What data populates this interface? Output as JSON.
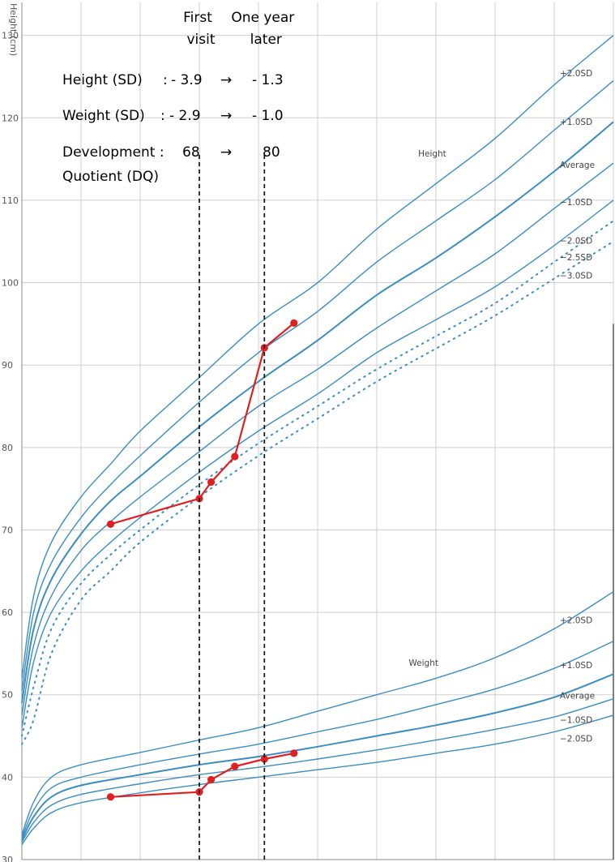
{
  "chart_data": {
    "type": "line",
    "ylabel": "Height (cm)",
    "ylim": [
      30,
      134
    ],
    "xlim": [
      0,
      5
    ],
    "y_ticks": [
      30,
      40,
      50,
      60,
      70,
      80,
      90,
      100,
      110,
      120,
      130
    ],
    "height_group_label": "Height",
    "weight_group_label": "Weight",
    "height_curves": [
      {
        "name": "+2.0SD",
        "style": "solid",
        "x": [
          0,
          0.1,
          0.25,
          0.5,
          0.75,
          1.0,
          1.5,
          2.0,
          2.5,
          3.0,
          3.5,
          4.0,
          4.5,
          5.0
        ],
        "y": [
          52,
          62,
          68.5,
          74,
          78,
          82,
          88.5,
          95,
          100,
          106.5,
          112,
          117.5,
          124,
          130
        ]
      },
      {
        "name": "+1.0SD",
        "style": "solid",
        "x": [
          0,
          0.1,
          0.25,
          0.5,
          0.75,
          1.0,
          1.5,
          2.0,
          2.5,
          3.0,
          3.5,
          4.0,
          4.5,
          5.0
        ],
        "y": [
          50.5,
          60,
          66,
          71.5,
          75.5,
          79,
          85.5,
          91.5,
          96.5,
          102.5,
          107.5,
          112.5,
          118.5,
          124.5
        ]
      },
      {
        "name": "Average",
        "style": "solid",
        "x": [
          0,
          0.1,
          0.25,
          0.5,
          0.75,
          1.0,
          1.5,
          2.0,
          2.5,
          3.0,
          3.5,
          4.0,
          4.5,
          5.0
        ],
        "y": [
          49,
          58,
          64,
          69.5,
          73.5,
          76.5,
          82.5,
          88,
          93,
          98.5,
          103,
          108,
          113.5,
          119.5
        ]
      },
      {
        "name": "−1.0SD",
        "style": "solid",
        "x": [
          0,
          0.1,
          0.25,
          0.5,
          0.75,
          1.0,
          1.5,
          2.0,
          2.5,
          3.0,
          3.5,
          4.0,
          4.5,
          5.0
        ],
        "y": [
          47.5,
          56,
          62,
          67.5,
          71,
          74,
          79.5,
          85,
          89.5,
          94.5,
          99,
          103.5,
          109,
          114.5
        ]
      },
      {
        "name": "−2.0SD",
        "style": "solid",
        "x": [
          0,
          0.1,
          0.25,
          0.5,
          0.75,
          1.0,
          1.5,
          2.0,
          2.5,
          3.0,
          3.5,
          4.0,
          4.5,
          5.0
        ],
        "y": [
          46,
          54,
          60,
          65,
          68.5,
          71.5,
          77,
          82,
          86.5,
          91.5,
          95.5,
          99.5,
          104.5,
          110
        ]
      },
      {
        "name": "−2.5SD",
        "style": "dotted",
        "x": [
          0,
          0.1,
          0.25,
          0.5,
          0.75,
          1.0,
          1.5,
          2.0,
          2.5,
          3.0,
          3.5,
          4.0,
          4.5,
          5.0
        ],
        "y": [
          45,
          51,
          58,
          63.5,
          67,
          70,
          75.5,
          80.5,
          85,
          89.5,
          93.5,
          97.5,
          102.5,
          107.5
        ]
      },
      {
        "name": "−3.0SD",
        "style": "dotted",
        "x": [
          0,
          0.1,
          0.25,
          0.5,
          0.75,
          1.0,
          1.5,
          2.0,
          2.5,
          3.0,
          3.5,
          4.0,
          4.5,
          5.0
        ],
        "y": [
          44,
          47,
          55,
          61.5,
          65,
          68.5,
          74,
          79,
          83.5,
          88,
          92,
          96,
          100.5,
          105
        ]
      }
    ],
    "weight_curves": [
      {
        "name": "+2.0SD",
        "style": "solid",
        "x": [
          0,
          0.1,
          0.25,
          0.5,
          1.0,
          1.5,
          2.0,
          2.5,
          3.0,
          3.5,
          4.0,
          4.5,
          5.0
        ],
        "y": [
          33,
          37,
          40,
          41.5,
          43,
          44.5,
          46,
          48,
          50,
          52,
          54.5,
          58,
          62.5
        ]
      },
      {
        "name": "+1.0SD",
        "style": "solid",
        "x": [
          0,
          0.1,
          0.25,
          0.5,
          1.0,
          1.5,
          2.0,
          2.5,
          3.0,
          3.5,
          4.0,
          4.5,
          5.0
        ],
        "y": [
          32.7,
          36,
          38.7,
          40,
          41.5,
          42.8,
          44,
          45.5,
          47,
          48.8,
          50.7,
          53.2,
          56.5
        ]
      },
      {
        "name": "Average",
        "style": "solid",
        "x": [
          0,
          0.1,
          0.25,
          0.5,
          1.0,
          1.5,
          2.0,
          2.5,
          3.0,
          3.5,
          4.0,
          4.5,
          5.0
        ],
        "y": [
          32.4,
          35.2,
          37.6,
          39,
          40.3,
          41.5,
          42.5,
          43.7,
          45,
          46.3,
          47.8,
          49.7,
          52.5
        ]
      },
      {
        "name": "−1.0SD",
        "style": "solid",
        "x": [
          0,
          0.1,
          0.25,
          0.5,
          1.0,
          1.5,
          2.0,
          2.5,
          3.0,
          3.5,
          4.0,
          4.5,
          5.0
        ],
        "y": [
          32.1,
          34.5,
          36.6,
          37.9,
          39.2,
          40.3,
          41.2,
          42.2,
          43.3,
          44.5,
          45.8,
          47.3,
          49.5
        ]
      },
      {
        "name": "−2.0SD",
        "style": "solid",
        "x": [
          0,
          0.1,
          0.25,
          0.5,
          1.0,
          1.5,
          2.0,
          2.5,
          3.0,
          3.5,
          4.0,
          4.5,
          5.0
        ],
        "y": [
          31.8,
          33.8,
          35.7,
          36.9,
          38.1,
          39.1,
          40,
          40.9,
          41.8,
          42.9,
          44,
          45.5,
          47.5
        ]
      }
    ],
    "patient_height": {
      "x": [
        0.75,
        1.5,
        1.6,
        1.8,
        2.05,
        2.3
      ],
      "y": [
        70.7,
        73.8,
        75.8,
        78.9,
        92.1,
        95.1
      ]
    },
    "patient_weight": {
      "x": [
        0.75,
        1.5,
        1.6,
        1.8,
        2.05,
        2.3
      ],
      "y": [
        37.6,
        38.2,
        39.7,
        41.3,
        42.2,
        42.9
      ]
    },
    "markers": [
      {
        "label_line1": "First",
        "label_line2": "visit",
        "x": 1.5
      },
      {
        "label_line1": "One year",
        "label_line2": "later",
        "x": 2.05
      }
    ],
    "annotations": {
      "height_row": {
        "label": "Height (SD)",
        "sep": ":",
        "first": "- 3.9",
        "arrow": "→",
        "later": "- 1.3"
      },
      "weight_row": {
        "label": "Weight (SD)",
        "sep": ":",
        "first": "- 2.9",
        "arrow": "→",
        "later": "- 1.0"
      },
      "dq_row": {
        "label": "Development :",
        "label_line2": "Quotient (DQ)",
        "first": "68",
        "arrow": "→",
        "later": "80"
      }
    },
    "colors": {
      "curve": "#3a8ec0",
      "patient": "#e02020",
      "grid": "#cfcfcf"
    }
  }
}
